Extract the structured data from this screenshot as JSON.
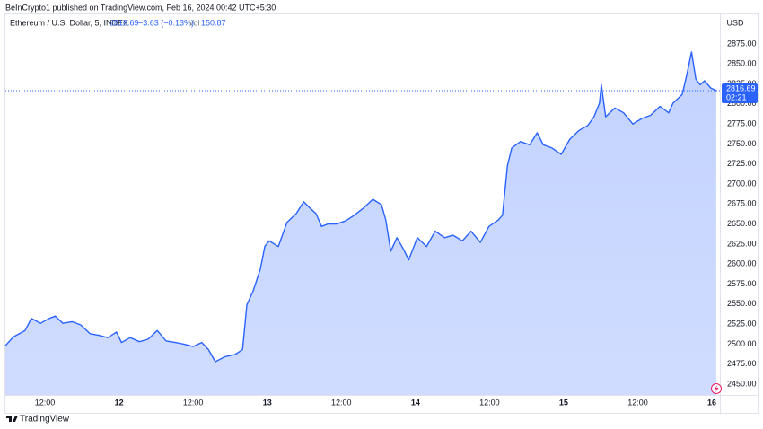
{
  "header": "BeInCrypto1 published on TradingView.com, Feb 16, 2024 00:42 UTC+5:30",
  "footer": "TradingView",
  "chart_data": {
    "type": "area",
    "currency": "USD",
    "last_price": 2816.69,
    "change": "−3.63 (−0.13%)",
    "volume_label": "Vol",
    "volume": 150.87,
    "countdown": "02:21",
    "x": [
      5.6,
      6.9,
      8.8,
      9.8,
      11.3,
      12.7,
      13.7,
      14.9,
      16.4,
      17.8,
      19.3,
      20.7,
      22.2,
      23.6,
      24.4,
      25.8,
      27.3,
      28.7,
      30.2,
      31.6,
      33.1,
      34.5,
      36.0,
      37.4,
      38.5,
      39.6,
      41.1,
      42.8,
      44.0,
      44.7,
      45.7,
      46.9,
      47.6,
      48.3,
      49.8,
      51.2,
      52.7,
      53.9,
      54.9,
      55.9,
      56.8,
      57.8,
      59.2,
      60.7,
      62.1,
      63.6,
      65.1,
      66.5,
      67.2,
      68.0,
      69.0,
      70.1,
      70.9,
      72.3,
      73.8,
      75.2,
      76.7,
      78.1,
      79.6,
      81.0,
      82.5,
      83.9,
      85.4,
      86.1,
      86.9,
      87.6,
      89.0,
      90.5,
      91.7,
      92.7,
      94.1,
      95.6,
      97.0,
      98.5,
      99.9,
      100.9,
      101.8,
      102.1,
      102.8,
      104.3,
      105.7,
      107.2,
      108.7,
      110.1,
      111.6,
      113.0,
      113.7,
      115.2,
      115.9,
      116.7,
      117.4,
      118.1,
      118.8,
      119.8,
      120.7
    ],
    "series": [
      {
        "name": "Ethereum / U.S. Dollar, 5, INDEX",
        "color": "#2962ff",
        "values": [
          2498,
          2509,
          2517,
          2532,
          2526,
          2532,
          2535,
          2526,
          2528,
          2524,
          2513,
          2511,
          2508,
          2515,
          2502,
          2508,
          2503,
          2506,
          2517,
          2504,
          2502,
          2500,
          2497,
          2502,
          2493,
          2478,
          2484,
          2487,
          2493,
          2549,
          2566,
          2594,
          2622,
          2629,
          2622,
          2652,
          2663,
          2678,
          2670,
          2663,
          2647,
          2650,
          2650,
          2654,
          2661,
          2670,
          2681,
          2674,
          2655,
          2616,
          2633,
          2618,
          2605,
          2633,
          2622,
          2641,
          2633,
          2636,
          2629,
          2641,
          2627,
          2647,
          2655,
          2661,
          2723,
          2745,
          2753,
          2749,
          2764,
          2749,
          2745,
          2737,
          2756,
          2767,
          2773,
          2784,
          2801,
          2824,
          2784,
          2795,
          2789,
          2775,
          2782,
          2786,
          2797,
          2789,
          2801,
          2812,
          2835,
          2865,
          2831,
          2824,
          2829,
          2820,
          2816.69
        ]
      }
    ],
    "xlim": [
      5.6,
      121.3
    ],
    "ylim": [
      2436.5,
      2912
    ],
    "xticks": [
      {
        "value": 12,
        "label": "12:00"
      },
      {
        "value": 24,
        "label": "12"
      },
      {
        "value": 36,
        "label": "12:00"
      },
      {
        "value": 48,
        "label": "13"
      },
      {
        "value": 60,
        "label": "12:00"
      },
      {
        "value": 72,
        "label": "14"
      },
      {
        "value": 84,
        "label": "12:00"
      },
      {
        "value": 96,
        "label": "15"
      },
      {
        "value": 108,
        "label": "12:00"
      },
      {
        "value": 120,
        "label": "16"
      }
    ],
    "yticks": [
      {
        "value": 2450,
        "label": "2450.00"
      },
      {
        "value": 2475,
        "label": "2475.00"
      },
      {
        "value": 2500,
        "label": "2500.00"
      },
      {
        "value": 2525,
        "label": "2525.00"
      },
      {
        "value": 2550,
        "label": "2550.00"
      },
      {
        "value": 2575,
        "label": "2575.00"
      },
      {
        "value": 2600,
        "label": "2600.00"
      },
      {
        "value": 2625,
        "label": "2625.00"
      },
      {
        "value": 2650,
        "label": "2650.00"
      },
      {
        "value": 2675,
        "label": "2675.00"
      },
      {
        "value": 2700,
        "label": "2700.00"
      },
      {
        "value": 2725,
        "label": "2725.00"
      },
      {
        "value": 2750,
        "label": "2750.00"
      },
      {
        "value": 2775,
        "label": "2775.00"
      },
      {
        "value": 2800,
        "label": "2800.00"
      },
      {
        "value": 2825,
        "label": "2825.00"
      },
      {
        "value": 2850,
        "label": "2850.00"
      },
      {
        "value": 2875,
        "label": "2875.00"
      }
    ],
    "grid": false
  }
}
